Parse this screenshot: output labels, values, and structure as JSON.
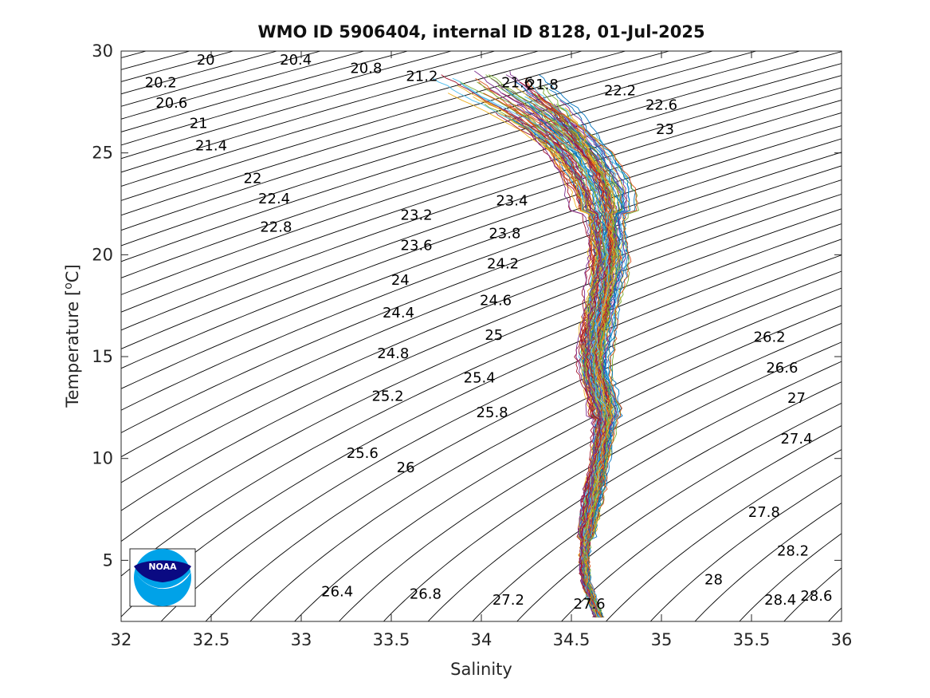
{
  "chart_data": {
    "type": "line",
    "title": "WMO ID 5906404, internal ID 8128, 01-Jul-2025",
    "xlabel": "Salinity",
    "ylabel_main": "Temperature [",
    "ylabel_sup": "o",
    "ylabel_end": "C]",
    "xlim": [
      32,
      36
    ],
    "ylim": [
      2,
      30
    ],
    "x_ticks": [
      "32",
      "32.5",
      "33",
      "33.5",
      "34",
      "34.5",
      "35",
      "35.5",
      "36"
    ],
    "y_ticks": [
      "5",
      "10",
      "15",
      "20",
      "25",
      "30"
    ],
    "grid": false,
    "density_contours": {
      "levels_step": 0.2,
      "color": "#000000",
      "labels": [
        {
          "text": "20",
          "s": 32.47,
          "t": 29.6
        },
        {
          "text": "20.2",
          "s": 32.22,
          "t": 28.5
        },
        {
          "text": "20.4",
          "s": 32.97,
          "t": 29.6
        },
        {
          "text": "20.6",
          "s": 32.28,
          "t": 27.5
        },
        {
          "text": "20.8",
          "s": 33.36,
          "t": 29.2
        },
        {
          "text": "21",
          "s": 32.43,
          "t": 26.5
        },
        {
          "text": "21.2",
          "s": 33.67,
          "t": 28.8
        },
        {
          "text": "21.4",
          "s": 32.5,
          "t": 25.4
        },
        {
          "text": "21.6",
          "s": 34.2,
          "t": 28.5
        },
        {
          "text": "21.8",
          "s": 34.34,
          "t": 28.4
        },
        {
          "text": "22",
          "s": 32.73,
          "t": 23.8
        },
        {
          "text": "22.2",
          "s": 34.77,
          "t": 28.1
        },
        {
          "text": "22.4",
          "s": 32.85,
          "t": 22.8
        },
        {
          "text": "22.6",
          "s": 35.0,
          "t": 27.4
        },
        {
          "text": "22.8",
          "s": 32.86,
          "t": 21.4
        },
        {
          "text": "23",
          "s": 35.02,
          "t": 26.2
        },
        {
          "text": "23.2",
          "s": 33.64,
          "t": 22.0
        },
        {
          "text": "23.4",
          "s": 34.17,
          "t": 22.7
        },
        {
          "text": "23.6",
          "s": 33.64,
          "t": 20.5
        },
        {
          "text": "23.8",
          "s": 34.13,
          "t": 21.1
        },
        {
          "text": "24",
          "s": 33.55,
          "t": 18.8
        },
        {
          "text": "24.2",
          "s": 34.12,
          "t": 19.6
        },
        {
          "text": "24.4",
          "s": 33.54,
          "t": 17.2
        },
        {
          "text": "24.6",
          "s": 34.08,
          "t": 17.8
        },
        {
          "text": "24.8",
          "s": 33.51,
          "t": 15.2
        },
        {
          "text": "25",
          "s": 34.07,
          "t": 16.1
        },
        {
          "text": "25.2",
          "s": 33.48,
          "t": 13.1
        },
        {
          "text": "25.4",
          "s": 33.99,
          "t": 14.0
        },
        {
          "text": "25.6",
          "s": 33.34,
          "t": 10.3
        },
        {
          "text": "25.8",
          "s": 34.06,
          "t": 12.3
        },
        {
          "text": "26",
          "s": 33.58,
          "t": 9.6
        },
        {
          "text": "26.2",
          "s": 35.6,
          "t": 16.0
        },
        {
          "text": "26.4",
          "s": 33.2,
          "t": 3.5
        },
        {
          "text": "26.6",
          "s": 35.67,
          "t": 14.5
        },
        {
          "text": "26.8",
          "s": 33.69,
          "t": 3.4
        },
        {
          "text": "27",
          "s": 35.75,
          "t": 13.0
        },
        {
          "text": "27.2",
          "s": 34.15,
          "t": 3.1
        },
        {
          "text": "27.4",
          "s": 35.75,
          "t": 11.0
        },
        {
          "text": "27.6",
          "s": 34.6,
          "t": 2.9
        },
        {
          "text": "27.8",
          "s": 35.57,
          "t": 7.4
        },
        {
          "text": "28",
          "s": 35.29,
          "t": 4.1
        },
        {
          "text": "28.2",
          "s": 35.73,
          "t": 5.5
        },
        {
          "text": "28.4",
          "s": 35.66,
          "t": 3.1
        },
        {
          "text": "28.6",
          "s": 35.86,
          "t": 3.3
        }
      ]
    },
    "profiles": {
      "count": 110,
      "colors": [
        "#0072bd",
        "#d95319",
        "#edb120",
        "#7e2f8e",
        "#77ac30",
        "#4dbeee",
        "#a2142f"
      ],
      "mean_curve": [
        {
          "t": 2.2,
          "s": 34.65
        },
        {
          "t": 3.0,
          "s": 34.62
        },
        {
          "t": 4.0,
          "s": 34.58
        },
        {
          "t": 5.0,
          "s": 34.57
        },
        {
          "t": 6.0,
          "s": 34.58
        },
        {
          "t": 7.0,
          "s": 34.6
        },
        {
          "t": 8.0,
          "s": 34.62
        },
        {
          "t": 9.0,
          "s": 34.64
        },
        {
          "t": 10.0,
          "s": 34.66
        },
        {
          "t": 11.0,
          "s": 34.68
        },
        {
          "t": 12.0,
          "s": 34.69
        },
        {
          "t": 13.0,
          "s": 34.67
        },
        {
          "t": 14.0,
          "s": 34.64
        },
        {
          "t": 15.0,
          "s": 34.63
        },
        {
          "t": 16.0,
          "s": 34.64
        },
        {
          "t": 17.0,
          "s": 34.66
        },
        {
          "t": 18.0,
          "s": 34.68
        },
        {
          "t": 19.0,
          "s": 34.7
        },
        {
          "t": 20.0,
          "s": 34.71
        },
        {
          "t": 21.0,
          "s": 34.7
        },
        {
          "t": 22.0,
          "s": 34.69
        },
        {
          "t": 23.0,
          "s": 34.67
        },
        {
          "t": 24.0,
          "s": 34.62
        },
        {
          "t": 25.0,
          "s": 34.55
        },
        {
          "t": 26.0,
          "s": 34.45
        },
        {
          "t": 27.0,
          "s": 34.32
        },
        {
          "t": 28.0,
          "s": 34.15
        },
        {
          "t": 29.0,
          "s": 34.0
        }
      ]
    }
  },
  "logo": {
    "text": "NOAA",
    "colors": {
      "navy": "#0a0a82",
      "blue": "#00a2e8",
      "white": "#ffffff"
    }
  }
}
